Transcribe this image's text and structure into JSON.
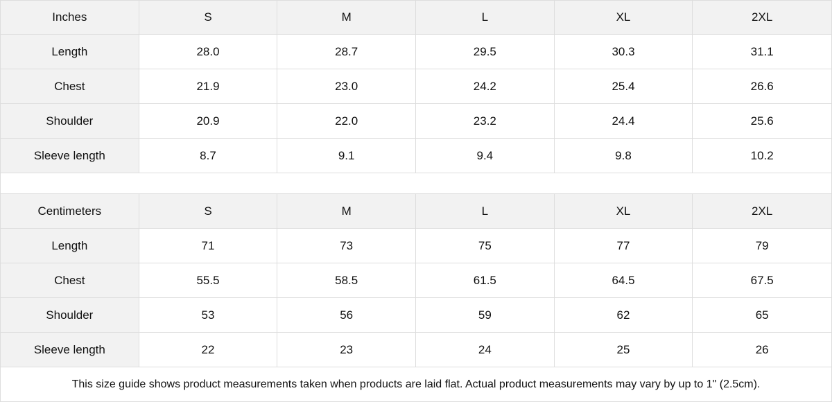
{
  "tables": [
    {
      "header": [
        "Inches",
        "S",
        "M",
        "L",
        "XL",
        "2XL"
      ],
      "rows": [
        [
          "Length",
          "28.0",
          "28.7",
          "29.5",
          "30.3",
          "31.1"
        ],
        [
          "Chest",
          "21.9",
          "23.0",
          "24.2",
          "25.4",
          "26.6"
        ],
        [
          "Shoulder",
          "20.9",
          "22.0",
          "23.2",
          "24.4",
          "25.6"
        ],
        [
          "Sleeve length",
          "8.7",
          "9.1",
          "9.4",
          "9.8",
          "10.2"
        ]
      ]
    },
    {
      "header": [
        "Centimeters",
        "S",
        "M",
        "L",
        "XL",
        "2XL"
      ],
      "rows": [
        [
          "Length",
          "71",
          "73",
          "75",
          "77",
          "79"
        ],
        [
          "Chest",
          "55.5",
          "58.5",
          "61.5",
          "64.5",
          "67.5"
        ],
        [
          "Shoulder",
          "53",
          "56",
          "59",
          "62",
          "65"
        ],
        [
          "Sleeve length",
          "22",
          "23",
          "24",
          "25",
          "26"
        ]
      ]
    }
  ],
  "note": "This size guide shows product measurements taken when products are laid flat.  Actual product measurements may vary by up to 1\" (2.5cm).",
  "colors": {
    "header_bg": "#f2f2f2",
    "border": "#dddddd"
  }
}
